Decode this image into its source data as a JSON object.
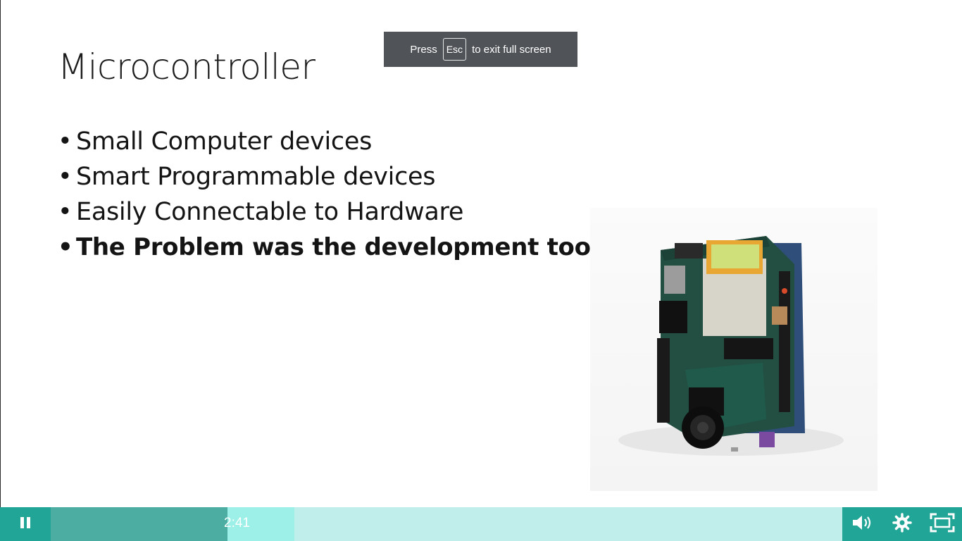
{
  "slide": {
    "title": "Microcontroller",
    "bullets": [
      {
        "bullet": "•",
        "text": "Small Computer devices"
      },
      {
        "bullet": "•",
        "text": "Smart Programmable devices"
      },
      {
        "bullet": "•",
        "text": "Easily Connectable to Hardware"
      },
      {
        "bullet": "•",
        "text": "The Problem was the development tools"
      }
    ],
    "image_alt": "microcontroller board with camera module"
  },
  "fullscreen_toast": {
    "prefix": "Press",
    "key": "Esc",
    "suffix": "to exit full screen"
  },
  "player": {
    "current_time": "2:41",
    "played_fraction": 0.223,
    "buffered_fraction": 0.308,
    "icons": {
      "pause": "pause-icon",
      "volume": "volume-icon",
      "settings": "gear-icon",
      "fullscreen": "exit-fullscreen-icon"
    },
    "colors": {
      "accent": "#20a596",
      "played": "#4caea3",
      "buffered": "#9cf0e8",
      "track": "#c0efeb"
    }
  }
}
